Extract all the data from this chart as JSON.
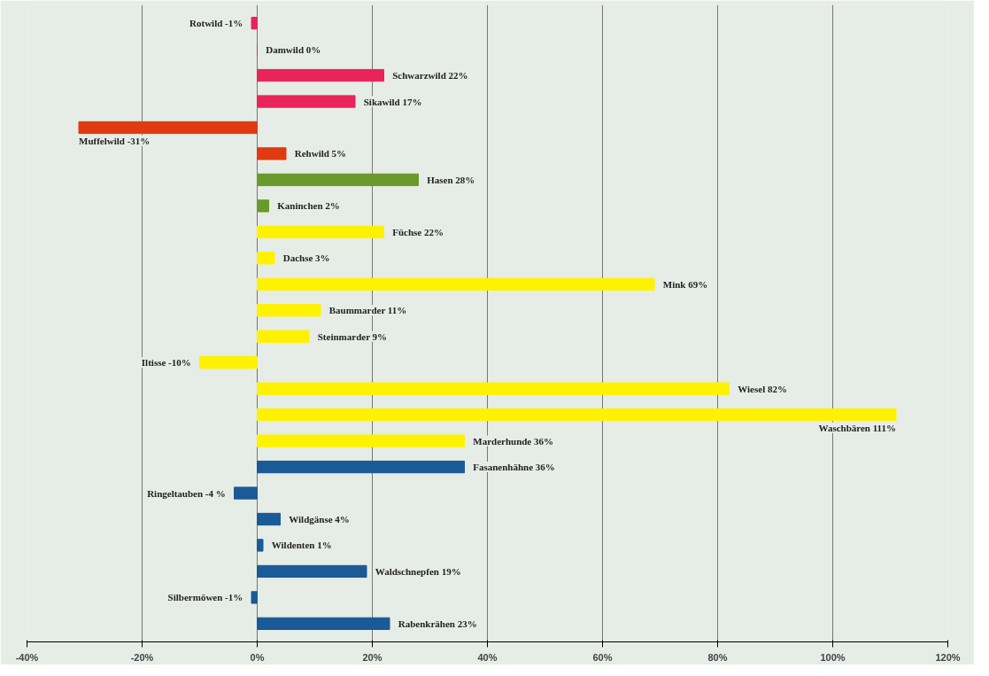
{
  "chart_data": {
    "type": "bar",
    "orientation": "horizontal",
    "categories": [
      null,
      null,
      null,
      null,
      null,
      null,
      null,
      null,
      null,
      null,
      null,
      null,
      null,
      null,
      null,
      null,
      null,
      null,
      null,
      null,
      null,
      null,
      null,
      null
    ],
    "values": [
      -1,
      0,
      22,
      17,
      -31,
      5,
      28,
      2,
      22,
      3,
      69,
      11,
      9,
      -10,
      82,
      111,
      36,
      36,
      -4,
      4,
      1,
      19,
      -1,
      23
    ],
    "value_labels": [
      "Rotwild -1%",
      "Damwild 0%",
      "Schwarzwild 22%",
      "Sikawild 17%",
      "Muffelwild -31%",
      "Rehwild 5%",
      "Hasen 28%",
      "Kaninchen  2%",
      "Füchse 22%",
      "Dachse 3%",
      "Mink 69%",
      "Baummarder 11%",
      "Steinmarder 9%",
      "Iltisse -10%",
      "Wiesel 82%",
      "Waschbären 111%",
      "Marderhunde 36%",
      "Fasanenhähne 36%",
      "Ringeltauben -4 %",
      "Wildgänse  4%",
      "Wildenten 1%",
      "Waldschnepfen 19%",
      "Silbermöwen -1%",
      "Rabenkrähen 23%"
    ],
    "colors": [
      "#e8245a",
      "#e8245a",
      "#e8245a",
      "#e8245a",
      "#e03a10",
      "#e03a10",
      "#6a9a2a",
      "#6a9a2a",
      "#fff200",
      "#fff200",
      "#fff200",
      "#fff200",
      "#fff200",
      "#fff200",
      "#fff200",
      "#fff200",
      "#fff200",
      "#1a5a96",
      "#1a5a96",
      "#1a5a96",
      "#1a5a96",
      "#1a5a96",
      "#1a5a96",
      "#1a5a96"
    ],
    "xlim": [
      -40,
      120
    ],
    "xticks": [
      {
        "value": -40,
        "label": "-40%"
      },
      {
        "value": -20,
        "label": "-20%"
      },
      {
        "value": 0,
        "label": "0%"
      },
      {
        "value": 20,
        "label": "20%"
      },
      {
        "value": 40,
        "label": "40%"
      },
      {
        "value": 60,
        "label": "60%"
      },
      {
        "value": 80,
        "label": "80%"
      },
      {
        "value": 100,
        "label": "100%"
      },
      {
        "value": 120,
        "label": "120%"
      }
    ],
    "grid": "x",
    "tick_labels": "x"
  }
}
